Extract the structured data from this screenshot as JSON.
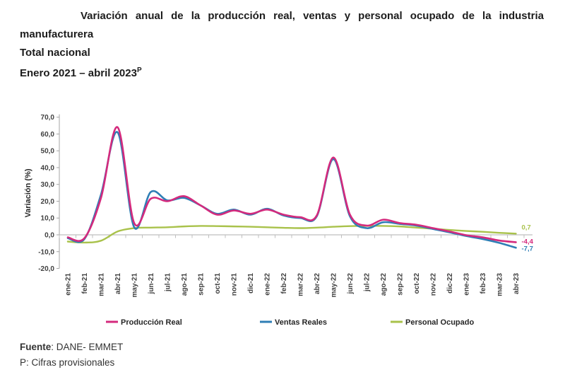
{
  "header": {
    "title_line1": "Variación anual de la producción real, ventas y personal ocupado de la industria",
    "title_line2": "manufacturera",
    "subtitle": "Total nacional",
    "period": "Enero 2021 – abril 2023",
    "period_superscript": "P"
  },
  "chart_data": {
    "type": "line",
    "title": "Variación anual de la producción real, ventas y personal ocupado de la industria manufacturera — Total nacional — Enero 2021 – abril 2023 (P)",
    "xlabel": "",
    "ylabel": "Variación (%)",
    "ylim": [
      -20,
      70
    ],
    "ytick_step": 10,
    "ytick_labels": [
      "70,0",
      "60,0",
      "50,0",
      "40,0",
      "30,0",
      "20,0",
      "10,0",
      "0,0",
      "-10,0",
      "-20,0"
    ],
    "grid": "zero-line-only",
    "legend_position": "bottom",
    "categories": [
      "ene-21",
      "feb-21",
      "mar-21",
      "abr-21",
      "may-21",
      "jun-21",
      "jul-21",
      "ago-21",
      "sep-21",
      "oct-21",
      "nov-21",
      "dic-21",
      "ene-22",
      "feb-22",
      "mar-22",
      "abr-22",
      "may-22",
      "jun-22",
      "jul-22",
      "ago-22",
      "sep-22",
      "oct-22",
      "nov-22",
      "dic-22",
      "ene-23",
      "feb-23",
      "mar-23",
      "abr-23"
    ],
    "series": [
      {
        "name": "Producción Real",
        "color": "#D42A7D",
        "end_label": "-4,4",
        "values": [
          -1.5,
          -2.0,
          22.0,
          64.0,
          7.0,
          21.5,
          20.0,
          23.0,
          17.5,
          12.0,
          14.5,
          12.5,
          15.0,
          12.0,
          10.5,
          11.5,
          46.0,
          12.0,
          5.5,
          9.0,
          7.0,
          6.0,
          4.0,
          2.0,
          -0.2,
          -1.5,
          -3.4,
          -4.4
        ]
      },
      {
        "name": "Ventas Reales",
        "color": "#2F7EB5",
        "end_label": "-7,7",
        "values": [
          -2.0,
          -2.5,
          24.0,
          61.0,
          4.5,
          25.5,
          20.5,
          22.0,
          17.5,
          12.5,
          15.0,
          12.0,
          15.5,
          11.5,
          10.0,
          11.0,
          45.0,
          11.0,
          4.0,
          7.5,
          6.5,
          5.5,
          3.5,
          1.5,
          -0.7,
          -2.5,
          -4.8,
          -7.7
        ]
      },
      {
        "name": "Personal Ocupado",
        "color": "#A9C24B",
        "end_label": "0,7",
        "values": [
          -4.0,
          -4.6,
          -3.5,
          2.0,
          4.0,
          4.3,
          4.5,
          5.0,
          5.3,
          5.2,
          5.0,
          4.8,
          4.5,
          4.2,
          4.0,
          4.3,
          4.8,
          5.2,
          5.3,
          5.3,
          5.0,
          4.3,
          3.6,
          2.9,
          2.3,
          1.8,
          1.2,
          0.7
        ]
      }
    ]
  },
  "footer": {
    "source_label": "Fuente",
    "source_rest": ": DANE- EMMET",
    "note": "P: Cifras provisionales"
  }
}
